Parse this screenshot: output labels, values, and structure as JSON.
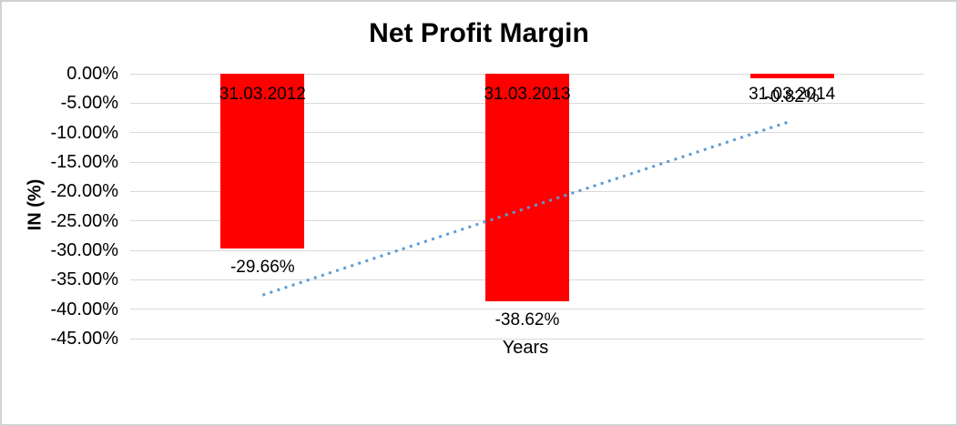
{
  "chart_data": {
    "type": "bar",
    "title": "Net Profit Margin",
    "categories": [
      "31.03.2012",
      "31.03.2013",
      "31.03.2014"
    ],
    "values": [
      -29.66,
      -38.62,
      -0.82
    ],
    "value_labels": [
      "-29.66%",
      "-38.62%",
      "-0.82%"
    ],
    "xlabel": "Years",
    "ylabel": "IN (%)",
    "ylim": [
      -45,
      0
    ],
    "ytick_step": 5,
    "ytick_labels": [
      "0.00%",
      "-5.00%",
      "-10.00%",
      "-15.00%",
      "-20.00%",
      "-25.00%",
      "-30.00%",
      "-35.00%",
      "-40.00%",
      "-45.00%"
    ],
    "grid": true,
    "legend": "none",
    "bar_color": "#FF0000",
    "label_color": "#000000",
    "gridline_color": "#D9D9D9",
    "trendline": {
      "type": "linear",
      "style": "dotted",
      "color": "#5B9BD5",
      "start_value": -37.6,
      "end_value": -8.0
    }
  }
}
